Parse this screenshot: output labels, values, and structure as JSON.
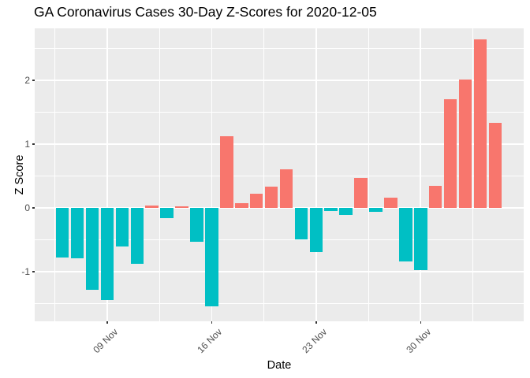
{
  "title": "GA Coronavirus Cases 30-Day Z-Scores for 2020-12-05",
  "y_axis": {
    "label": "Z Score",
    "tick_labels": [
      "-1",
      "0",
      "1",
      "2"
    ]
  },
  "x_axis": {
    "label": "Date",
    "tick_labels": [
      "09 Nov",
      "16 Nov",
      "23 Nov",
      "30 Nov"
    ]
  },
  "colors": {
    "positive_bar": "#F8766D",
    "negative_bar": "#00BFC4",
    "panel_background": "#EBEBEB",
    "gridline": "#FFFFFF",
    "tick_text": "#4D4D4D",
    "tick_mark": "#333333",
    "title_text": "#000000"
  },
  "chart_data": {
    "type": "bar",
    "title": "GA Coronavirus Cases 30-Day Z-Scores for 2020-12-05",
    "xlabel": "Date",
    "ylabel": "Z Score",
    "x": [
      "2020-11-06",
      "2020-11-07",
      "2020-11-08",
      "2020-11-09",
      "2020-11-10",
      "2020-11-11",
      "2020-11-12",
      "2020-11-13",
      "2020-11-14",
      "2020-11-15",
      "2020-11-16",
      "2020-11-17",
      "2020-11-18",
      "2020-11-19",
      "2020-11-20",
      "2020-11-21",
      "2020-11-22",
      "2020-11-23",
      "2020-11-24",
      "2020-11-25",
      "2020-11-26",
      "2020-11-27",
      "2020-11-28",
      "2020-11-29",
      "2020-11-30",
      "2020-12-01",
      "2020-12-02",
      "2020-12-03",
      "2020-12-04",
      "2020-12-05"
    ],
    "values": [
      -0.78,
      -0.79,
      -1.28,
      -1.45,
      -0.61,
      -0.88,
      0.04,
      -0.16,
      0.03,
      -0.53,
      -1.55,
      1.12,
      0.08,
      0.22,
      0.33,
      0.6,
      -0.5,
      -0.69,
      -0.05,
      -0.11,
      0.47,
      -0.06,
      0.16,
      -0.84,
      -0.98,
      0.35,
      1.7,
      2.02,
      2.65,
      1.34
    ],
    "color_rule": "positive values salmon #F8766D, negative values teal #00BFC4",
    "x_ticks": [
      {
        "label": "09 Nov",
        "bar_index": 3
      },
      {
        "label": "16 Nov",
        "bar_index": 10
      },
      {
        "label": "23 Nov",
        "bar_index": 17
      },
      {
        "label": "30 Nov",
        "bar_index": 24
      }
    ],
    "y_ticks": [
      -1,
      0,
      1,
      2
    ],
    "y_minor_ticks": [
      -1.5,
      -0.5,
      0.5,
      1.5,
      2.5
    ],
    "ylim": [
      -1.79,
      2.81
    ],
    "grid": "white major and minor gridlines on gray panel",
    "legend_position": "none"
  }
}
